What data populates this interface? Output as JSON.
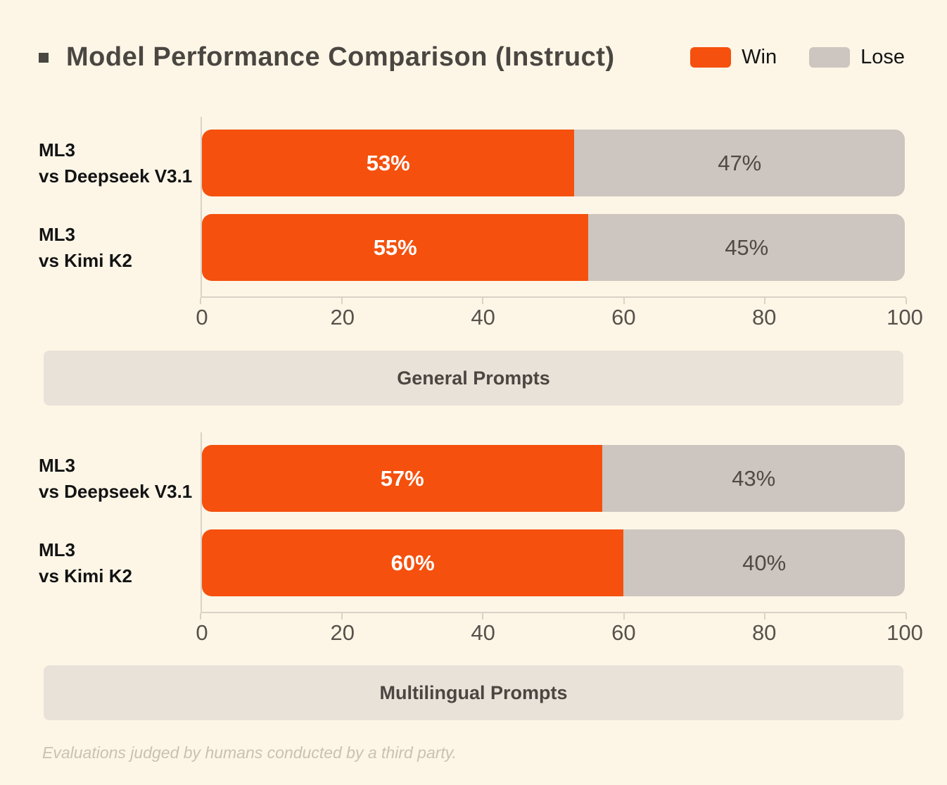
{
  "page": {
    "title": "Model Performance Comparison (Instruct)",
    "footer_note": "Evaluations judged by humans conducted by a third party."
  },
  "colors": {
    "background": "#FDF6E7",
    "win": "#F5500D",
    "lose": "#CDC5BF",
    "band_background": "#E9E2D8",
    "title_text": "#4A4641",
    "axis_text": "#57514B"
  },
  "legend": {
    "items": [
      {
        "label": "Win",
        "color": "#F5500D"
      },
      {
        "label": "Lose",
        "color": "#CDC5BF"
      }
    ]
  },
  "chart_data": [
    {
      "type": "bar",
      "stacked": true,
      "orientation": "horizontal",
      "section_label": "General Prompts",
      "categories": [
        [
          "ML3",
          "vs Deepseek V3.1"
        ],
        [
          "ML3",
          "vs Kimi K2"
        ]
      ],
      "series": [
        {
          "name": "Win",
          "color": "#F5500D",
          "values": [
            53,
            55
          ]
        },
        {
          "name": "Lose",
          "color": "#CDC5BF",
          "values": [
            47,
            45
          ]
        }
      ],
      "value_suffix": "%",
      "xlim": [
        0,
        100
      ],
      "x_ticks": [
        0,
        20,
        40,
        60,
        80,
        100
      ],
      "grid": false,
      "legend_position": "top-right"
    },
    {
      "type": "bar",
      "stacked": true,
      "orientation": "horizontal",
      "section_label": "Multilingual Prompts",
      "categories": [
        [
          "ML3",
          "vs Deepseek V3.1"
        ],
        [
          "ML3",
          "vs Kimi K2"
        ]
      ],
      "series": [
        {
          "name": "Win",
          "color": "#F5500D",
          "values": [
            57,
            60
          ]
        },
        {
          "name": "Lose",
          "color": "#CDC5BF",
          "values": [
            43,
            40
          ]
        }
      ],
      "value_suffix": "%",
      "xlim": [
        0,
        100
      ],
      "x_ticks": [
        0,
        20,
        40,
        60,
        80,
        100
      ],
      "grid": false,
      "legend_position": "top-right"
    }
  ]
}
